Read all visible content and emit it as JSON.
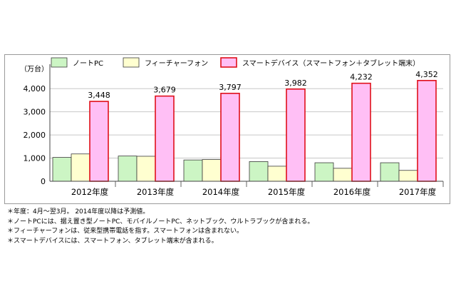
{
  "chart_data": {
    "type": "bar",
    "unit_label": "（万台）",
    "categories": [
      "2012年度",
      "2013年度",
      "2014年度",
      "2015年度",
      "2016年度",
      "2017年度"
    ],
    "series": [
      {
        "name": "ノートPC",
        "values": [
          1030,
          1090,
          920,
          850,
          800,
          800
        ],
        "color": "#ccf5c4",
        "stroke": "#3a3a3a",
        "labels": false
      },
      {
        "name": "フィーチャーフォン",
        "values": [
          1180,
          1080,
          940,
          650,
          560,
          470
        ],
        "color": "#ffffd0",
        "stroke": "#3a3a3a",
        "labels": false
      },
      {
        "name": "スマートデバイス（スマートフォン＋タブレット端末）",
        "values": [
          3448,
          3679,
          3797,
          3982,
          4232,
          4352
        ],
        "color": "#ffbff5",
        "stroke": "#e0101a",
        "labels": true
      }
    ],
    "data_labels": [
      "3,448",
      "3,679",
      "3,797",
      "3,982",
      "4,232",
      "4,352"
    ],
    "y_ticks": [
      0,
      1000,
      2000,
      3000,
      4000
    ],
    "y_tick_labels": [
      "0",
      "1,000",
      "2,000",
      "3,000",
      "4,000"
    ],
    "ylim": [
      0,
      4500
    ],
    "grid": true,
    "legend_position": "top"
  },
  "notes": [
    "＊年度：4月～翌3月。 2014年度以降は予測値。",
    "＊ノートPCには、据え置き型ノートPC、モバイルノートPC、ネットブック、ウルトラブックが含まれる。",
    "＊フィーチャーフォンは、従来型携帯電話を指す。スマートフォンは含まれない。",
    "＊スマートデバイスには、スマートフォン、タブレット端末が含まれる。"
  ]
}
